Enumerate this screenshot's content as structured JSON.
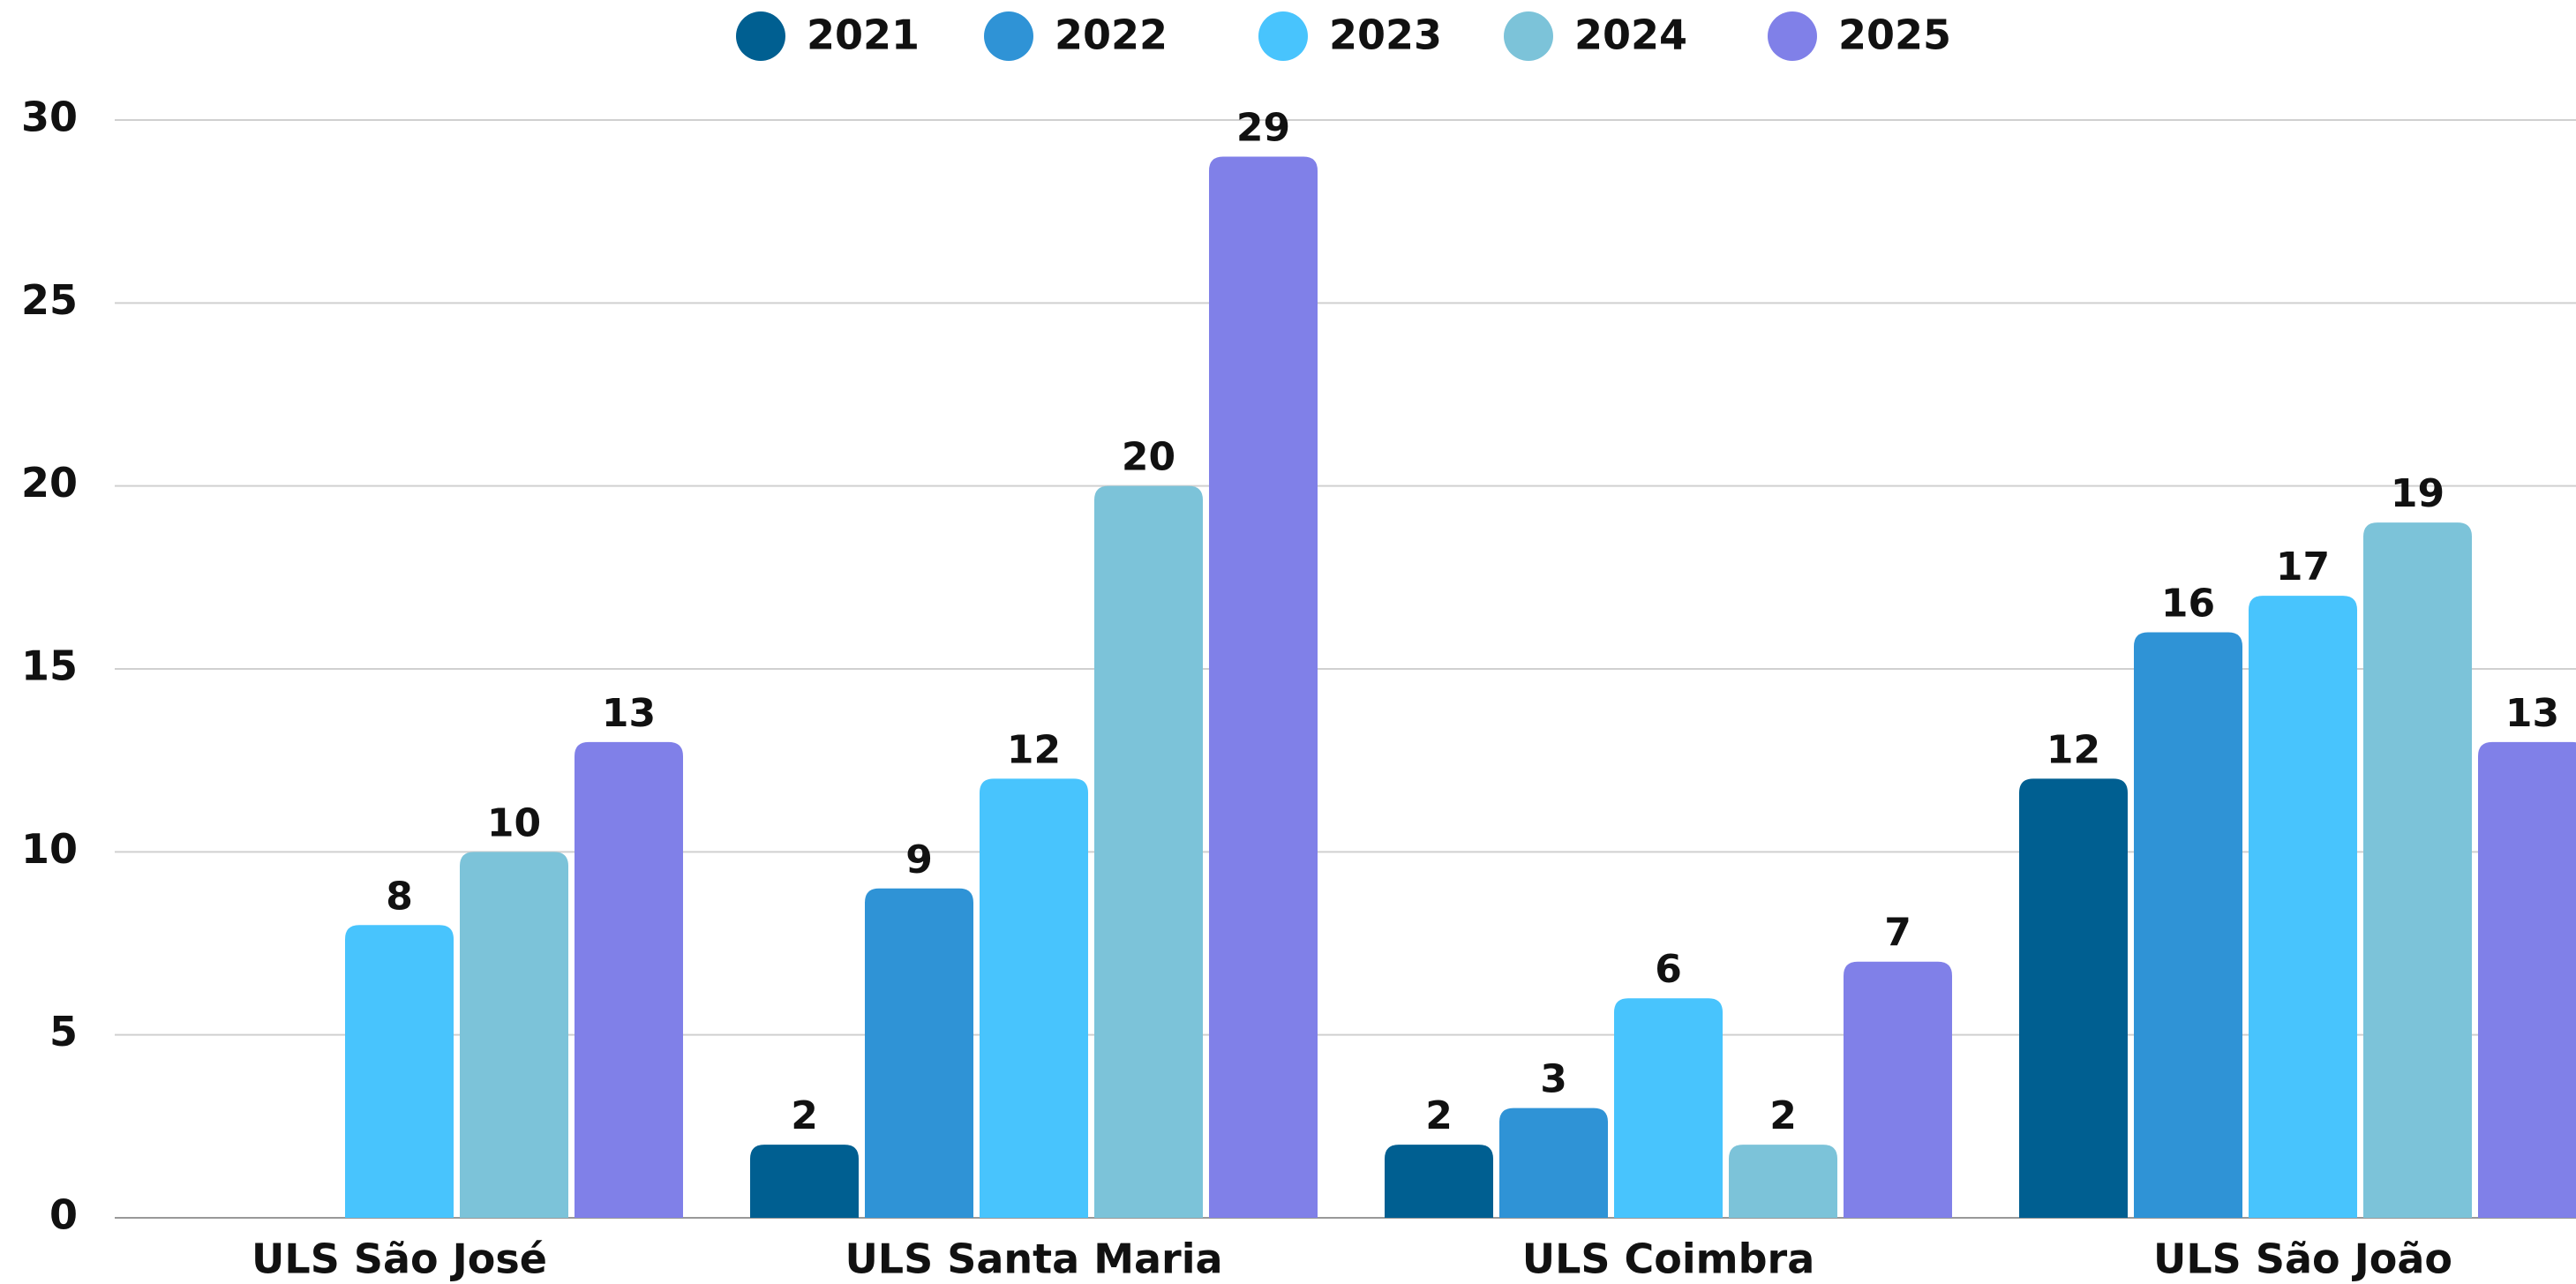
{
  "chart_data": {
    "type": "bar",
    "categories": [
      "ULS São José",
      "ULS Santa Maria",
      "ULS Coimbra",
      "ULS São João"
    ],
    "series": [
      {
        "name": "2021",
        "color": "#005f91",
        "values": [
          null,
          2,
          2,
          12
        ]
      },
      {
        "name": "2022",
        "color": "#2f93d6",
        "values": [
          null,
          9,
          3,
          16
        ]
      },
      {
        "name": "2023",
        "color": "#48c4fd",
        "values": [
          8,
          12,
          6,
          17
        ]
      },
      {
        "name": "2024",
        "color": "#7cc3d9",
        "values": [
          10,
          20,
          2,
          19
        ]
      },
      {
        "name": "2025",
        "color": "#8080e8",
        "values": [
          13,
          29,
          7,
          13
        ]
      }
    ],
    "ylim": [
      0,
      30
    ],
    "yticks": [
      0,
      5,
      10,
      15,
      20,
      25,
      30
    ],
    "grid": true,
    "legend": "top"
  }
}
